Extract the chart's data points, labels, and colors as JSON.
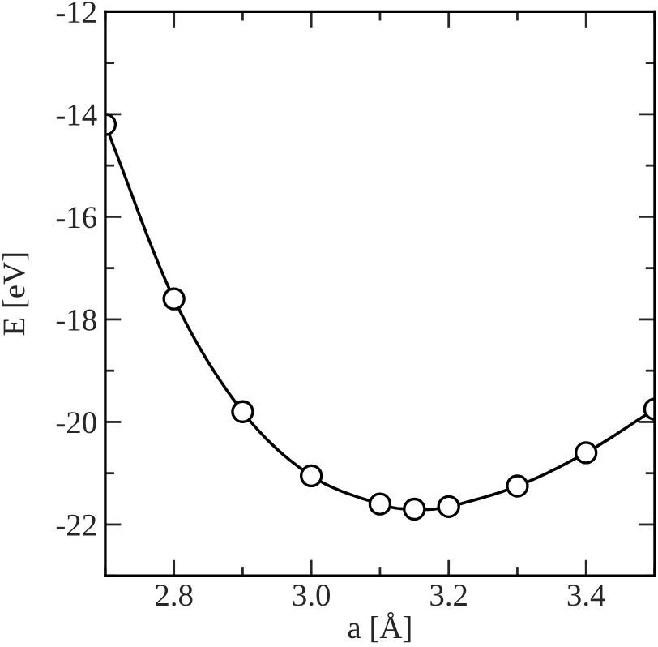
{
  "chart_data": {
    "type": "line",
    "xlabel": "a [Å]",
    "ylabel": "E [eV]",
    "x": [
      2.7,
      2.8,
      2.9,
      3.0,
      3.1,
      3.15,
      3.2,
      3.3,
      3.4,
      3.5
    ],
    "series": [
      {
        "color": "#000000",
        "values": [
          -14.2,
          -17.6,
          -19.8,
          -21.05,
          -21.6,
          -21.7,
          -21.65,
          -21.25,
          -20.6,
          -19.75
        ]
      }
    ],
    "marker": "circle",
    "line_style": "solid",
    "grid": false,
    "legend": false,
    "xlim": [
      2.7,
      3.5
    ],
    "xticks": [
      {
        "value": 2.7,
        "label": null
      },
      2.8,
      {
        "value": 2.9,
        "label": null
      },
      {
        "value": 3.0,
        "label": "3.0"
      },
      {
        "value": 3.1,
        "label": null
      },
      3.2,
      {
        "value": 3.3,
        "label": null
      },
      3.4,
      {
        "value": 3.5,
        "label": null
      }
    ],
    "ylim": [
      -23,
      -12
    ],
    "yticks": [
      {
        "value": -23,
        "label": null
      },
      -22,
      {
        "value": -21,
        "label": null
      },
      -20,
      {
        "value": -19,
        "label": null
      },
      -18,
      {
        "value": -17,
        "label": null
      },
      -16,
      {
        "value": -15,
        "label": null
      },
      -14,
      {
        "value": -13,
        "label": null
      },
      -12
    ]
  }
}
